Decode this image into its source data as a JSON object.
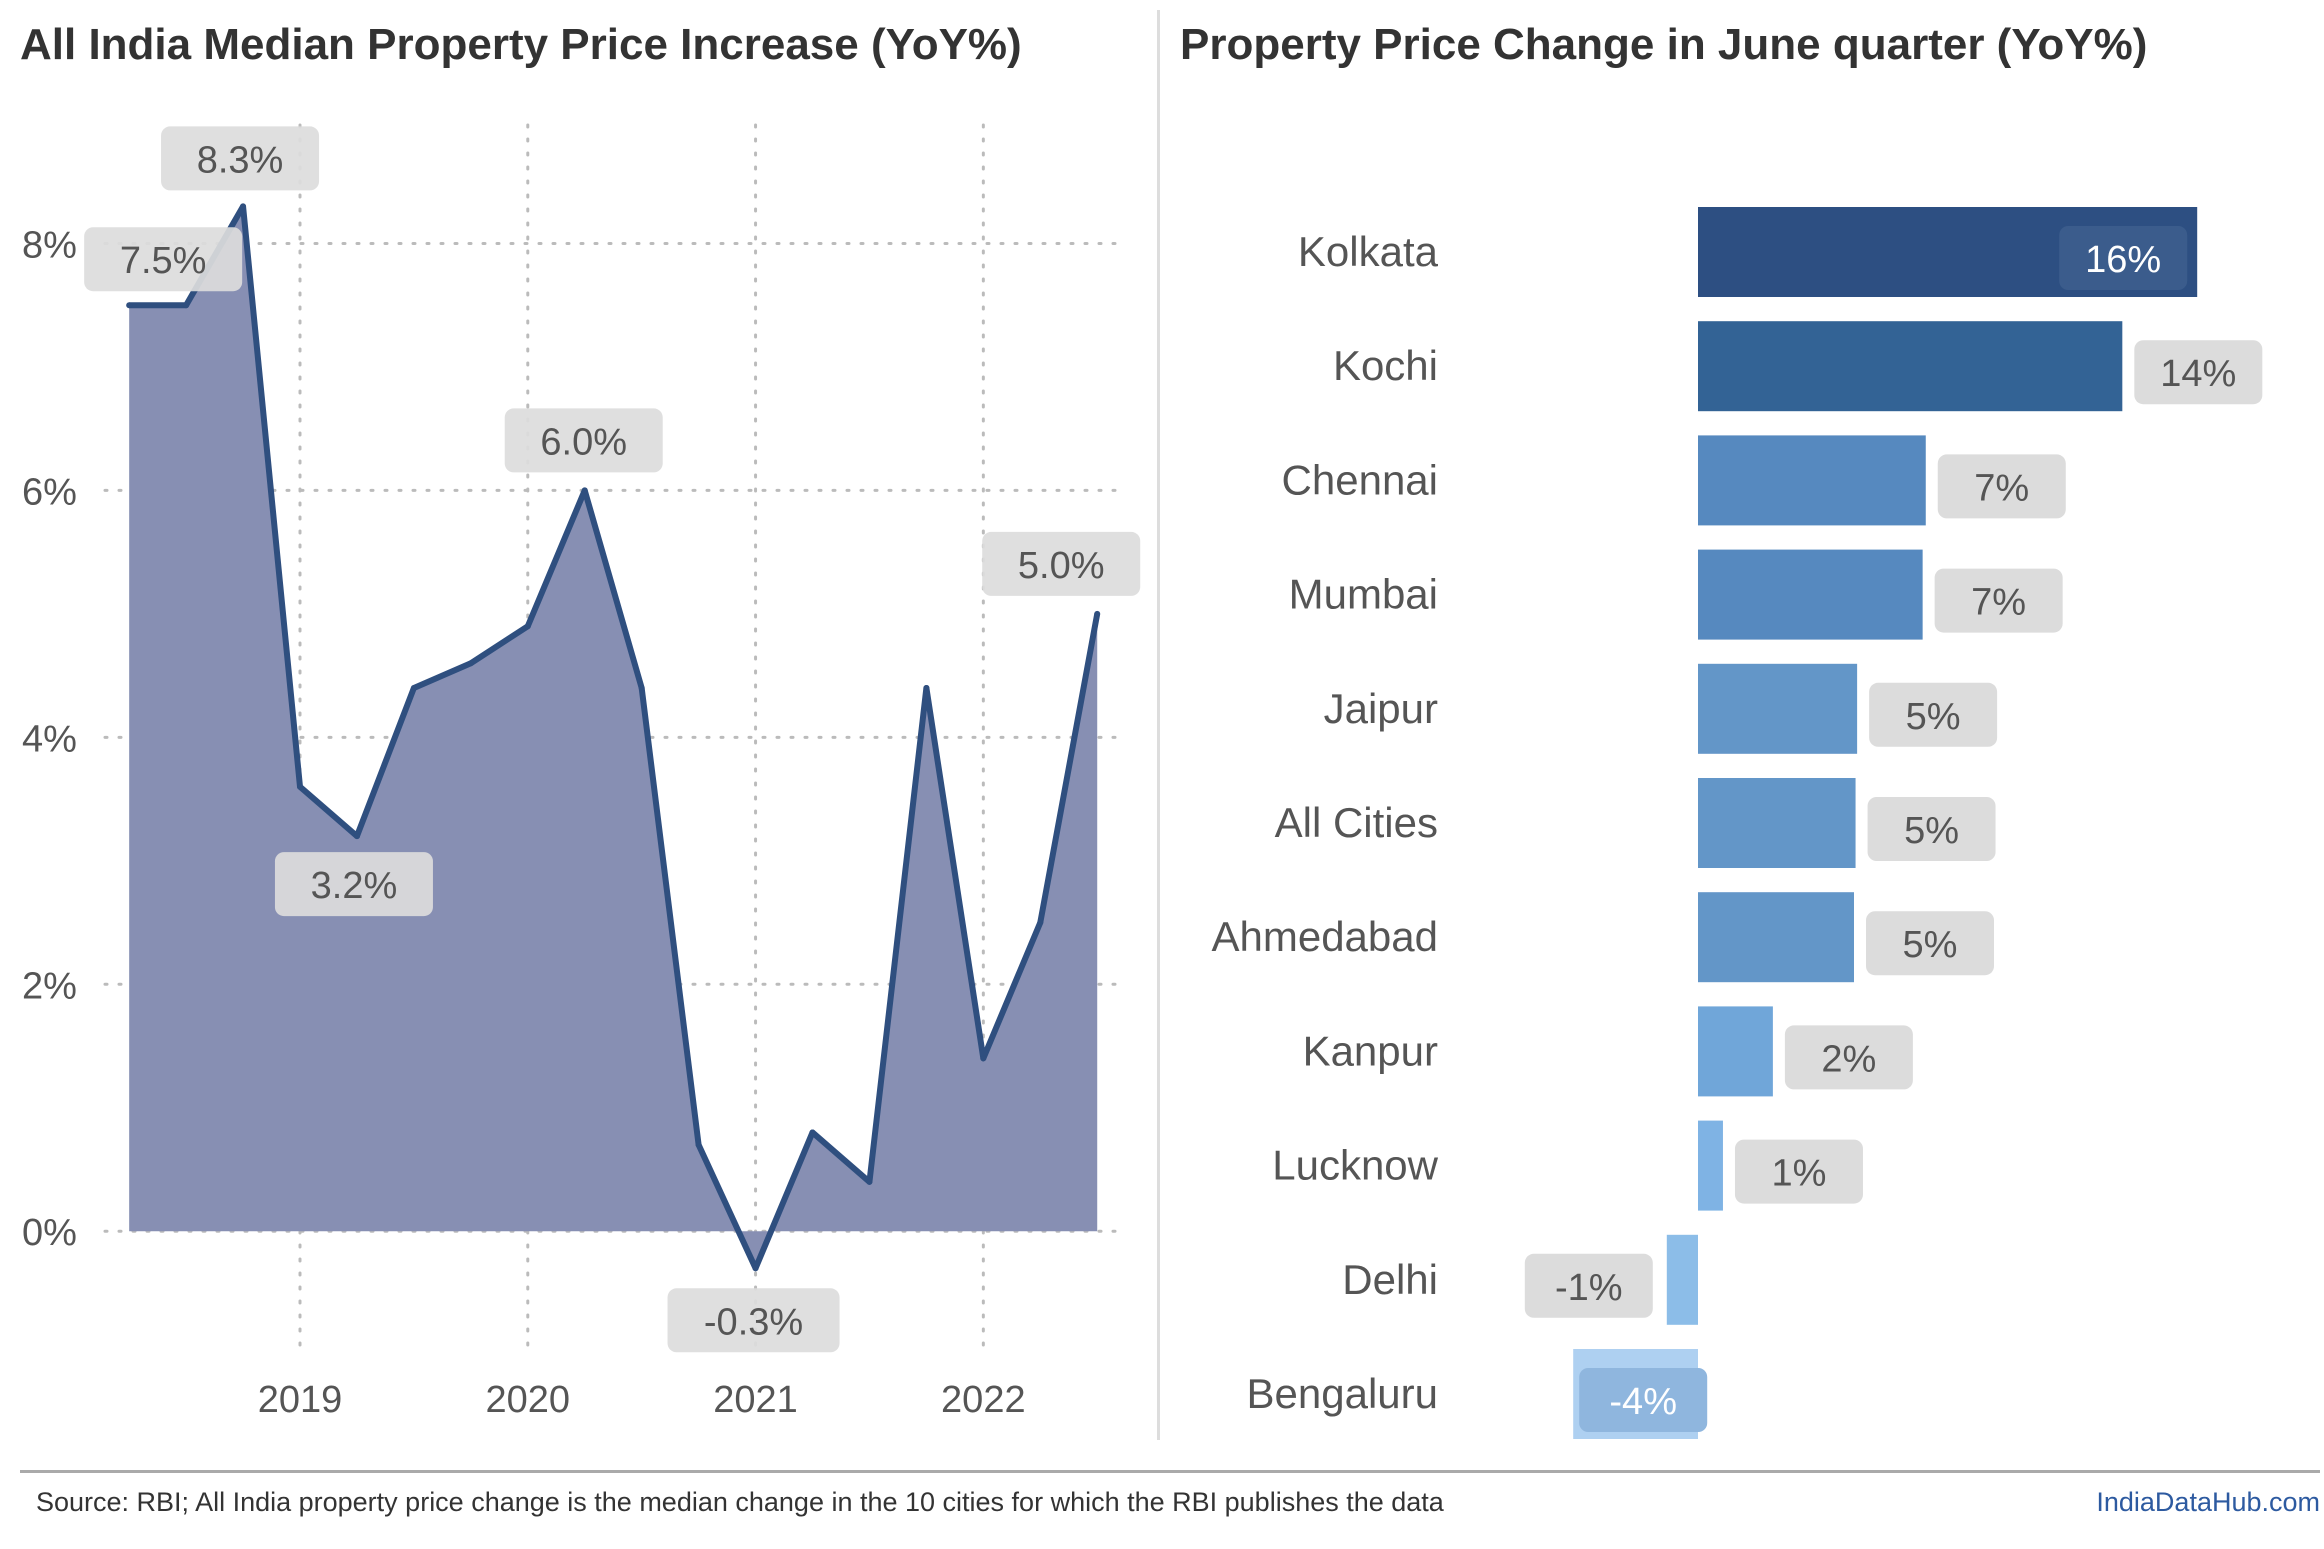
{
  "left_title": "All India Median Property Price Increase (YoY%)",
  "right_title": "Property Price Change in June quarter (YoY%)",
  "footer": {
    "source": "Source: RBI; All India property price change is the median change in the 10 cities for which the RBI publishes the data",
    "brand": "IndiaDataHub.com"
  },
  "colors": {
    "area_fill": "#878fb3",
    "line": "#2f4f7f",
    "label_box": "#dcdcdc",
    "grid": "#bbbbbb"
  },
  "chart_data": [
    {
      "type": "area",
      "title": "All India Median Property Price Increase (YoY%)",
      "x_ticks": [
        "2019",
        "2020",
        "2021",
        "2022"
      ],
      "x_tick_positions": [
        2019.0,
        2020.0,
        2021.0,
        2022.0
      ],
      "x_range": [
        2018.1,
        2022.6
      ],
      "y_ticks": [
        "0%",
        "2%",
        "4%",
        "6%",
        "8%"
      ],
      "y_tick_values": [
        0,
        2,
        4,
        6,
        8
      ],
      "ylim": [
        -0.8,
        9.0
      ],
      "grid": true,
      "points": [
        {
          "x": 2018.25,
          "y": 7.5
        },
        {
          "x": 2018.5,
          "y": 7.5
        },
        {
          "x": 2018.75,
          "y": 8.3
        },
        {
          "x": 2019.0,
          "y": 3.6
        },
        {
          "x": 2019.25,
          "y": 3.2
        },
        {
          "x": 2019.5,
          "y": 4.4
        },
        {
          "x": 2019.75,
          "y": 4.6
        },
        {
          "x": 2020.0,
          "y": 4.9
        },
        {
          "x": 2020.25,
          "y": 6.0
        },
        {
          "x": 2020.5,
          "y": 4.4
        },
        {
          "x": 2020.75,
          "y": 0.7
        },
        {
          "x": 2021.0,
          "y": -0.3
        },
        {
          "x": 2021.25,
          "y": 0.8
        },
        {
          "x": 2021.5,
          "y": 0.4
        },
        {
          "x": 2021.75,
          "y": 4.4
        },
        {
          "x": 2022.0,
          "y": 1.4
        },
        {
          "x": 2022.25,
          "y": 2.5
        },
        {
          "x": 2022.5,
          "y": 5.0
        }
      ],
      "annotations": [
        {
          "text": "7.5%",
          "x": 2018.25,
          "y": 7.5,
          "position": "above-right"
        },
        {
          "text": "8.3%",
          "x": 2018.75,
          "y": 8.3,
          "position": "above-left"
        },
        {
          "text": "3.2%",
          "x": 2019.25,
          "y": 3.2,
          "position": "below"
        },
        {
          "text": "6.0%",
          "x": 2020.25,
          "y": 6.0,
          "position": "above"
        },
        {
          "text": "-0.3%",
          "x": 2021.0,
          "y": -0.3,
          "position": "below"
        },
        {
          "text": "5.0%",
          "x": 2022.5,
          "y": 5.0,
          "position": "above-left"
        }
      ]
    },
    {
      "type": "bar",
      "orientation": "horizontal",
      "title": "Property Price Change in June quarter (YoY%)",
      "categories": [
        "Kolkata",
        "Kochi",
        "Chennai",
        "Mumbai",
        "Jaipur",
        "All Cities",
        "Ahmedabad",
        "Kanpur",
        "Lucknow",
        "Delhi",
        "Bengaluru"
      ],
      "values": [
        16.0,
        13.6,
        7.3,
        7.2,
        5.1,
        5.05,
        5.0,
        2.4,
        0.8,
        -1.0,
        -4.0
      ],
      "labels": [
        "16%",
        "14%",
        "7%",
        "7%",
        "5%",
        "5%",
        "5%",
        "2%",
        "1%",
        "-1%",
        "-4%"
      ],
      "colors": [
        "#2d4f82",
        "#336395",
        "#5689bf",
        "#5689bf",
        "#6396c8",
        "#6396c8",
        "#6396c8",
        "#70a6d9",
        "#7fb3e4",
        "#8cbde8",
        "#aed0f1"
      ],
      "xlim": [
        -5,
        17
      ]
    }
  ]
}
